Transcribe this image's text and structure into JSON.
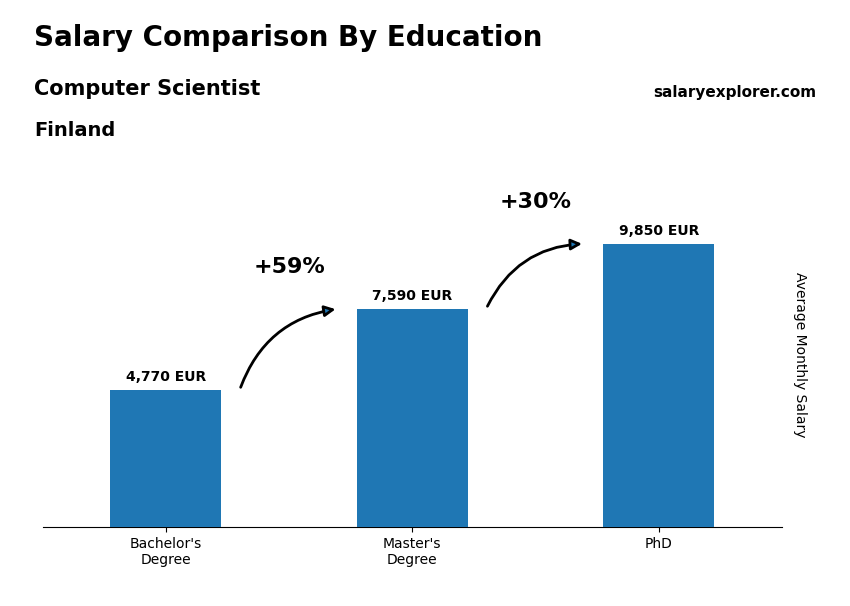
{
  "chart_data": {
    "type": "bar",
    "title": "Salary Comparison By Education",
    "subtitle": "Computer Scientist",
    "country": "Finland",
    "brand": "salaryexplorer.com",
    "categories": [
      "Bachelor's\nDegree",
      "Master's\nDegree",
      "PhD"
    ],
    "values": [
      4770,
      7590,
      9850
    ],
    "value_labels": [
      "4,770 EUR",
      "7,590 EUR",
      "9,850 EUR"
    ],
    "data_labels": true,
    "annotations": [
      "+59%",
      "+30%"
    ],
    "ylabel": "Average Monthly Salary",
    "ylim": [
      0,
      12000
    ],
    "tick_labels": "x",
    "grid": false
  }
}
